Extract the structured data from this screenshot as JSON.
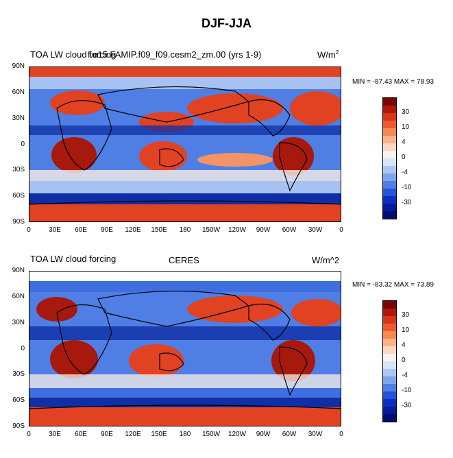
{
  "title": "DJF-JJA",
  "panels": [
    {
      "left_title": "TOA LW cloud forcing",
      "center_title": "f.e15.FAMIP.f09_f09.cesm2_zm.00 (yrs 1-9)",
      "units": "W/m",
      "units_sup": "2",
      "minmax": "MIN = -87.43 MAX =  78.93"
    },
    {
      "left_title": "TOA LW cloud forcing",
      "center_title": "CERES",
      "units": "W/m^2",
      "units_sup": "",
      "minmax": "MIN = -83.32 MAX =  73.89"
    }
  ],
  "lat_labels": [
    "90N",
    "60N",
    "30N",
    "0",
    "30S",
    "60S",
    "90S"
  ],
  "lon_labels": [
    "0",
    "30E",
    "60E",
    "90E",
    "120E",
    "150E",
    "180",
    "150W",
    "120W",
    "90W",
    "60W",
    "30W",
    "0"
  ],
  "colorbar": {
    "labels": [
      "30",
      "10",
      "4",
      "0",
      "-4",
      "-10",
      "-30"
    ],
    "colors": [
      "#7a0404",
      "#b0160a",
      "#d8361a",
      "#ee5a30",
      "#f6894f",
      "#f9b28a",
      "#fbd7be",
      "#f7f3ef",
      "#d8e4f8",
      "#adc7f3",
      "#7ea5ec",
      "#4f7fe4",
      "#2554d8",
      "#0c2ec4",
      "#061a9c",
      "#040d6e"
    ]
  },
  "map_colors": {
    "red_dark": "#a6190c",
    "red": "#e04222",
    "orange": "#f29466",
    "light": "#f8efe8",
    "blue_light": "#a7c1f1",
    "blue": "#3f6ee0",
    "blue_dark": "#0e2fa6"
  }
}
